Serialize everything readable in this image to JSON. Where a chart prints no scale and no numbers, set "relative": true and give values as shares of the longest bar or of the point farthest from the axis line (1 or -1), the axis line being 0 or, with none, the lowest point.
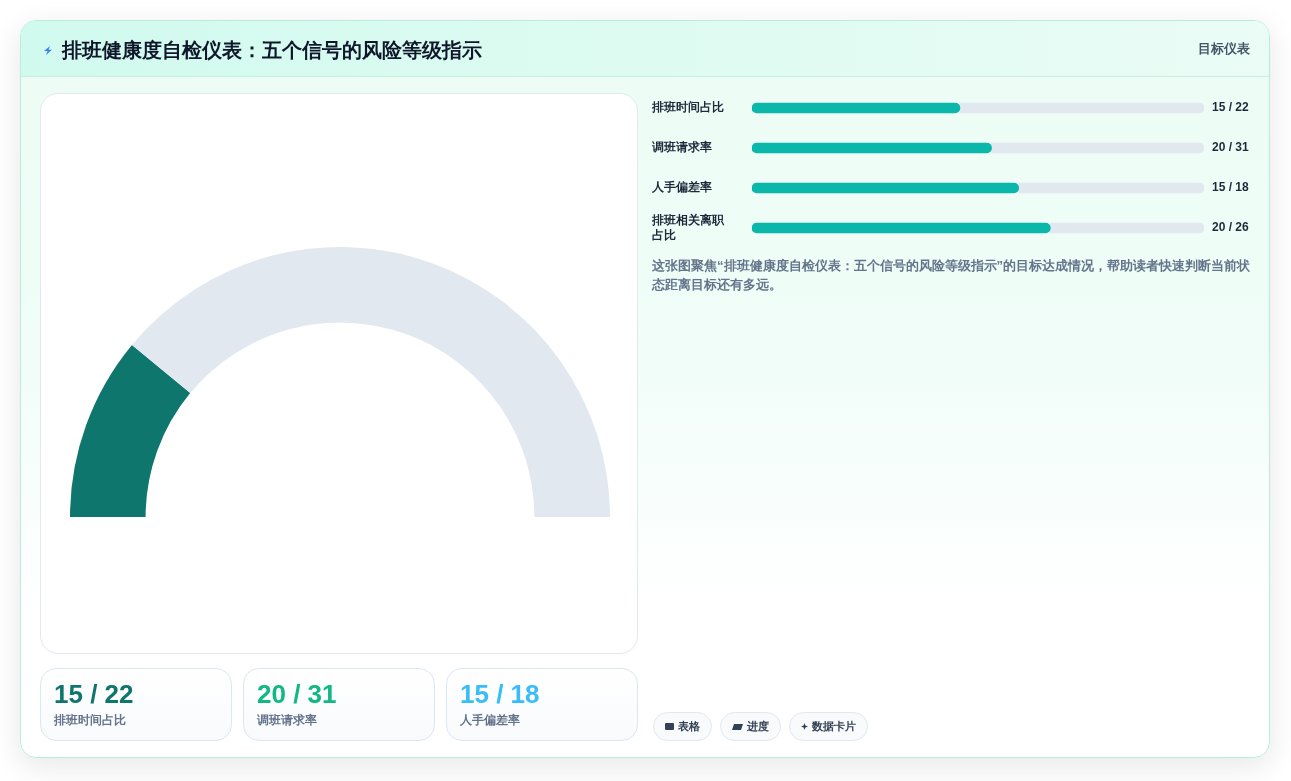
{
  "chart_data": [
    {
      "type": "donut",
      "title": "排班健康度自检仪表：五个信号的风险等级指示",
      "annotations": [
        "目标仪表"
      ],
      "categories": [
        null,
        null
      ],
      "values": [
        22,
        78
      ],
      "colors": [
        "#0f766e",
        "#e2e8f0"
      ]
    },
    {
      "type": "bar",
      "orientation": "horizontal",
      "stacked": true,
      "relative": true,
      "categories": [
        "排班时间占比",
        "调班请求率",
        "人手偏差率",
        "排班相关离职占比"
      ],
      "series": [
        {
          "color": "#0bb7aa",
          "values": [
            0.46,
            0.53,
            0.59,
            0.66
          ]
        },
        {
          "color": "#e2e8f0",
          "values": [
            0.54,
            0.47,
            0.41,
            0.34
          ]
        }
      ],
      "annotations": [
        "15 / 22",
        "20 / 31",
        "15 / 18",
        "20 / 26",
        "这张图聚焦“排班健康度自检仪表：五个信号的风险等级指示”的目标达成情况，帮助读者快速判断当前状态距离目标还有多远。"
      ]
    },
    {
      "type": "other",
      "categories": [
        "排班时间占比",
        "调班请求率",
        "人手偏差率"
      ],
      "value_labels": [
        "15 / 22",
        "20 / 31",
        "15 / 18"
      ],
      "annotations": [
        "表格",
        "进度",
        "数据卡片"
      ]
    }
  ]
}
